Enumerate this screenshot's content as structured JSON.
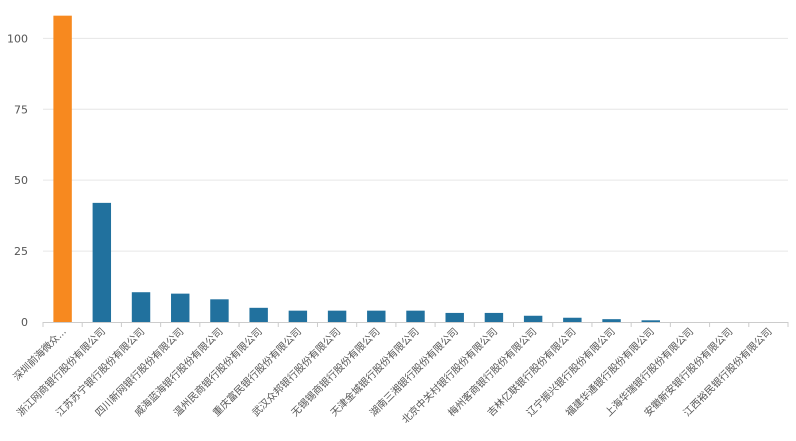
{
  "chart_data": {
    "type": "bar",
    "title": "",
    "xlabel": "",
    "ylabel": "",
    "ylim": [
      0,
      110
    ],
    "yticks": [
      0,
      25,
      50,
      75,
      100
    ],
    "grid": true,
    "categories": [
      "深圳前海微众...",
      "浙江网商银行股份有限公司",
      "江苏苏宁银行股份有限公司",
      "四川新网银行股份有限公司",
      "威海蓝海银行股份有限公司",
      "温州民商银行股份有限公司",
      "重庆富民银行股份有限公司",
      "武汉众邦银行股份有限公司",
      "无锡锡商银行股份有限公司",
      "天津金城银行股份有限公司",
      "湖南三湘银行股份有限公司",
      "北京中关村银行股份有限公司",
      "梅州客商银行股份有限公司",
      "吉林亿联银行股份有限公司",
      "辽宁振兴银行股份有限公司",
      "福建华通银行股份有限公司",
      "上海华瑞银行股份有限公司",
      "安徽新安银行股份有限公司",
      "江西裕民银行股份有限公司"
    ],
    "values": [
      108,
      42,
      10.5,
      10,
      8,
      5,
      4,
      4,
      4,
      4,
      3.2,
      3.2,
      2.2,
      1.5,
      1,
      0.6,
      0,
      0,
      0
    ],
    "colors": {
      "highlight": "#f7891f",
      "default": "#21719e"
    },
    "highlight_index": 0
  }
}
